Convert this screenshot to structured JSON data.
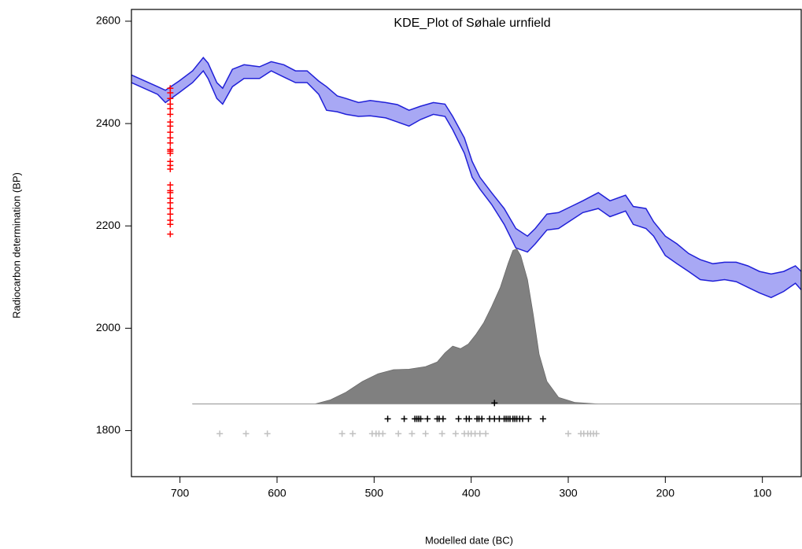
{
  "chart_data": {
    "type": "kde",
    "title": "KDE_Plot of Søhale urnfield",
    "x_label": "Modelled date (BC)",
    "y_label": "Radiocarbon determination (BP)",
    "xlim": [
      750,
      60
    ],
    "ylim": [
      1710,
      2623
    ],
    "xticks": [
      700,
      600,
      500,
      400,
      300,
      200,
      100
    ],
    "yticks": [
      1800,
      2000,
      2200,
      2400,
      2600
    ],
    "curve": {
      "color": "#2020d8",
      "fill": "#a8a8f4",
      "x": [
        750,
        723,
        715,
        701,
        687,
        676,
        671,
        662,
        656,
        646,
        634,
        618,
        606,
        593,
        581,
        569,
        557,
        549,
        538,
        529,
        516,
        504,
        488,
        476,
        464,
        452,
        439,
        427,
        419,
        407,
        399,
        391,
        379,
        366,
        354,
        342,
        334,
        322,
        310,
        297,
        285,
        269,
        257,
        241,
        233,
        220,
        212,
        200,
        188,
        176,
        164,
        151,
        139,
        127,
        115,
        103,
        91,
        78,
        66,
        60
      ],
      "upper": [
        2495,
        2472,
        2465,
        2483,
        2503,
        2529,
        2518,
        2480,
        2469,
        2506,
        2515,
        2511,
        2521,
        2515,
        2503,
        2503,
        2483,
        2472,
        2454,
        2449,
        2441,
        2445,
        2441,
        2437,
        2426,
        2434,
        2441,
        2438,
        2414,
        2372,
        2326,
        2295,
        2265,
        2234,
        2195,
        2180,
        2195,
        2223,
        2226,
        2238,
        2249,
        2265,
        2249,
        2260,
        2238,
        2234,
        2208,
        2180,
        2165,
        2146,
        2134,
        2126,
        2129,
        2129,
        2122,
        2111,
        2106,
        2111,
        2122,
        2111
      ],
      "lower": [
        2480,
        2457,
        2441,
        2460,
        2480,
        2503,
        2488,
        2449,
        2438,
        2472,
        2488,
        2488,
        2503,
        2491,
        2480,
        2480,
        2457,
        2426,
        2423,
        2418,
        2414,
        2415,
        2411,
        2403,
        2395,
        2408,
        2418,
        2414,
        2388,
        2342,
        2295,
        2272,
        2242,
        2203,
        2157,
        2149,
        2165,
        2192,
        2195,
        2211,
        2226,
        2234,
        2218,
        2229,
        2203,
        2195,
        2180,
        2142,
        2126,
        2111,
        2095,
        2092,
        2095,
        2091,
        2080,
        2069,
        2060,
        2072,
        2088,
        2075
      ]
    },
    "kde": {
      "color": "#808080",
      "baseline": 1852,
      "x": [
        687,
        561,
        545,
        529,
        512,
        496,
        480,
        464,
        447,
        435,
        427,
        419,
        411,
        403,
        395,
        387,
        379,
        370,
        362,
        357,
        353,
        349,
        342,
        336,
        330,
        322,
        310,
        293,
        269,
        60
      ],
      "values": [
        1852,
        1852,
        1860,
        1875,
        1896,
        1911,
        1919,
        1920,
        1925,
        1934,
        1952,
        1965,
        1960,
        1969,
        1988,
        2011,
        2042,
        2080,
        2126,
        2152,
        2155,
        2142,
        2095,
        2026,
        1949,
        1896,
        1865,
        1855,
        1852,
        1852
      ]
    },
    "markers": [
      {
        "color": "#ff0000",
        "x": 710,
        "y": [
          2469,
          2460,
          2449,
          2438,
          2429,
          2418,
          2403,
          2395,
          2383,
          2372,
          2362,
          2349,
          2346,
          2342,
          2326,
          2318,
          2311,
          2280,
          2269,
          2265,
          2254,
          2245,
          2234,
          2223,
          2211,
          2203,
          2184
        ]
      },
      {
        "color": "#000000",
        "y": 1854,
        "x": [
          376
        ]
      },
      {
        "color": "#000000",
        "y": 1823,
        "x": [
          486,
          469,
          458,
          456,
          454,
          452,
          445,
          435,
          433,
          429,
          413,
          405,
          402,
          394,
          392,
          389,
          381,
          376,
          371,
          366,
          364,
          362,
          360,
          357,
          355,
          353,
          350,
          347,
          341,
          326
        ]
      },
      {
        "color": "#c0c0c0",
        "y": 1794,
        "x": [
          659,
          632,
          610,
          533,
          522,
          502,
          498,
          495,
          491,
          475,
          461,
          447,
          430,
          416,
          407,
          403,
          400,
          396,
          391,
          385,
          300,
          287,
          284,
          280,
          277,
          274,
          271
        ]
      }
    ]
  }
}
